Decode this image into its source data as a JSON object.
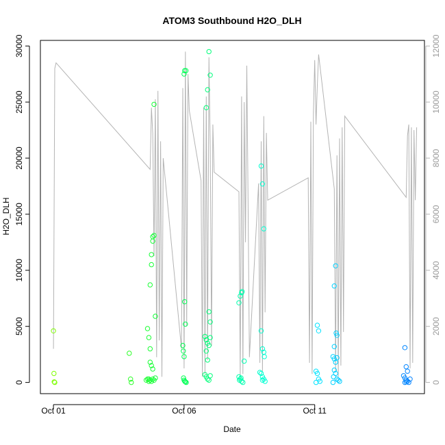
{
  "chart_data": {
    "type": "scatter",
    "title": "ATOM3 Southbound H2O_DLH",
    "xlabel": "Date",
    "ylabel": "H2O_DLH",
    "x_unit": "days since 2015-10-01",
    "x_ticks": [
      {
        "value": 0,
        "label": "Oct 01"
      },
      {
        "value": 5,
        "label": "Oct 06"
      },
      {
        "value": 10,
        "label": "Oct 11"
      }
    ],
    "xlim": [
      -0.5,
      14.2
    ],
    "ylim": [
      -1000,
      30500
    ],
    "y_ticks": [
      0,
      5000,
      10000,
      15000,
      20000,
      25000,
      30000
    ],
    "secondary_axis": {
      "side": "right",
      "color": "#b3b3b3",
      "ylim": [
        -400,
        12200
      ],
      "y_ticks": [
        0,
        2000,
        4000,
        6000,
        8000,
        10000,
        12000
      ],
      "series_line": [
        [
          0.0,
          1200
        ],
        [
          0.05,
          11200
        ],
        [
          0.1,
          11400
        ],
        [
          3.7,
          7600
        ],
        [
          3.75,
          9800
        ],
        [
          3.8,
          8900
        ],
        [
          3.85,
          4500
        ],
        [
          3.9,
          10100
        ],
        [
          3.95,
          900
        ],
        [
          4.0,
          10400
        ],
        [
          4.05,
          1500
        ],
        [
          4.1,
          8600
        ],
        [
          4.15,
          200
        ],
        [
          4.2,
          8000
        ],
        [
          4.9,
          1200
        ],
        [
          4.95,
          10500
        ],
        [
          5.0,
          500
        ],
        [
          5.05,
          11800
        ],
        [
          5.1,
          2000
        ],
        [
          5.15,
          11000
        ],
        [
          5.2,
          9700
        ],
        [
          5.65,
          7200
        ],
        [
          5.7,
          200
        ],
        [
          5.75,
          9800
        ],
        [
          5.8,
          300
        ],
        [
          5.85,
          10200
        ],
        [
          5.9,
          800
        ],
        [
          5.95,
          11600
        ],
        [
          6.0,
          8400
        ],
        [
          6.05,
          1300
        ],
        [
          6.1,
          9200
        ],
        [
          6.15,
          7500
        ],
        [
          7.1,
          6800
        ],
        [
          7.15,
          200
        ],
        [
          7.2,
          10200
        ],
        [
          7.25,
          300
        ],
        [
          7.3,
          10000
        ],
        [
          7.35,
          5000
        ],
        [
          7.4,
          11300
        ],
        [
          7.45,
          6300
        ],
        [
          7.5,
          900
        ],
        [
          7.85,
          7100
        ],
        [
          7.9,
          700
        ],
        [
          7.95,
          8600
        ],
        [
          8.0,
          400
        ],
        [
          8.05,
          9500
        ],
        [
          8.1,
          2500
        ],
        [
          8.15,
          8900
        ],
        [
          8.2,
          6500
        ],
        [
          9.75,
          7300
        ],
        [
          9.8,
          700
        ],
        [
          9.85,
          9300
        ],
        [
          9.9,
          300
        ],
        [
          9.95,
          9600
        ],
        [
          10.0,
          11500
        ],
        [
          10.05,
          9200
        ],
        [
          10.1,
          10600
        ],
        [
          10.15,
          11700
        ],
        [
          10.75,
          6900
        ],
        [
          10.8,
          400
        ],
        [
          10.85,
          8100
        ],
        [
          10.9,
          200
        ],
        [
          10.95,
          8700
        ],
        [
          11.0,
          600
        ],
        [
          11.05,
          9100
        ],
        [
          11.1,
          1800
        ],
        [
          11.15,
          9500
        ],
        [
          13.5,
          6600
        ],
        [
          13.55,
          8800
        ],
        [
          13.6,
          9200
        ],
        [
          13.65,
          500
        ],
        [
          13.7,
          9100
        ],
        [
          13.75,
          700
        ],
        [
          13.8,
          9000
        ],
        [
          13.85,
          6500
        ],
        [
          13.9,
          9100
        ]
      ]
    },
    "series": [
      {
        "color_scale": [
          "#7fff00",
          "#00ff40",
          "#00ffff",
          "#0080ff"
        ],
        "points": [
          [
            0.0,
            4600
          ],
          [
            0.02,
            800
          ],
          [
            0.03,
            50
          ],
          [
            0.05,
            0
          ],
          [
            2.9,
            2600
          ],
          [
            2.95,
            300
          ],
          [
            2.98,
            0
          ],
          [
            3.6,
            4800
          ],
          [
            3.65,
            4000
          ],
          [
            3.7,
            3000
          ],
          [
            3.7,
            8700
          ],
          [
            3.75,
            10500
          ],
          [
            3.75,
            11400
          ],
          [
            3.8,
            12600
          ],
          [
            3.8,
            13000
          ],
          [
            3.85,
            13100
          ],
          [
            3.85,
            24800
          ],
          [
            3.9,
            5900
          ],
          [
            3.7,
            1800
          ],
          [
            3.75,
            1500
          ],
          [
            3.8,
            1200
          ],
          [
            3.65,
            300
          ],
          [
            3.7,
            200
          ],
          [
            3.75,
            100
          ],
          [
            3.8,
            300
          ],
          [
            3.85,
            200
          ],
          [
            3.9,
            400
          ],
          [
            3.6,
            300
          ],
          [
            3.65,
            100
          ],
          [
            3.55,
            200
          ],
          [
            4.95,
            3300
          ],
          [
            4.97,
            2800
          ],
          [
            5.0,
            2300
          ],
          [
            5.02,
            7200
          ],
          [
            5.05,
            5200
          ],
          [
            5.0,
            27500
          ],
          [
            5.02,
            27800
          ],
          [
            5.07,
            27800
          ],
          [
            4.98,
            400
          ],
          [
            5.0,
            200
          ],
          [
            5.03,
            100
          ],
          [
            5.05,
            50
          ],
          [
            5.08,
            0
          ],
          [
            5.8,
            4100
          ],
          [
            5.85,
            3800
          ],
          [
            5.9,
            3500
          ],
          [
            5.95,
            3300
          ],
          [
            6.0,
            4000
          ],
          [
            5.85,
            2800
          ],
          [
            5.9,
            2000
          ],
          [
            5.95,
            6300
          ],
          [
            6.0,
            5400
          ],
          [
            5.85,
            24500
          ],
          [
            5.9,
            26100
          ],
          [
            5.95,
            29500
          ],
          [
            6.0,
            27400
          ],
          [
            5.8,
            700
          ],
          [
            5.85,
            500
          ],
          [
            5.9,
            300
          ],
          [
            5.95,
            200
          ],
          [
            6.0,
            600
          ],
          [
            7.1,
            7100
          ],
          [
            7.15,
            7700
          ],
          [
            7.2,
            8000
          ],
          [
            7.22,
            8100
          ],
          [
            7.1,
            500
          ],
          [
            7.15,
            300
          ],
          [
            7.2,
            100
          ],
          [
            7.25,
            0
          ],
          [
            7.3,
            1900
          ],
          [
            7.12,
            200
          ],
          [
            7.18,
            400
          ],
          [
            7.95,
            19300
          ],
          [
            8.0,
            17700
          ],
          [
            8.05,
            13700
          ],
          [
            7.95,
            4600
          ],
          [
            8.0,
            3000
          ],
          [
            8.05,
            2700
          ],
          [
            8.07,
            2300
          ],
          [
            7.9,
            900
          ],
          [
            7.95,
            800
          ],
          [
            8.0,
            500
          ],
          [
            8.05,
            300
          ],
          [
            8.1,
            100
          ],
          [
            8.0,
            200
          ],
          [
            10.1,
            5100
          ],
          [
            10.15,
            4600
          ],
          [
            10.05,
            1000
          ],
          [
            10.1,
            800
          ],
          [
            10.15,
            300
          ],
          [
            10.2,
            100
          ],
          [
            10.05,
            0
          ],
          [
            10.75,
            8600
          ],
          [
            10.8,
            10400
          ],
          [
            10.82,
            4400
          ],
          [
            10.85,
            4200
          ],
          [
            10.75,
            3200
          ],
          [
            10.7,
            2300
          ],
          [
            10.75,
            2100
          ],
          [
            10.8,
            1800
          ],
          [
            10.85,
            2200
          ],
          [
            10.75,
            1100
          ],
          [
            10.8,
            800
          ],
          [
            10.85,
            300
          ],
          [
            10.9,
            200
          ],
          [
            10.95,
            100
          ],
          [
            10.7,
            0
          ],
          [
            10.72,
            500
          ],
          [
            13.45,
            3100
          ],
          [
            13.5,
            1400
          ],
          [
            13.55,
            1000
          ],
          [
            13.4,
            600
          ],
          [
            13.45,
            400
          ],
          [
            13.5,
            200
          ],
          [
            13.55,
            100
          ],
          [
            13.6,
            0
          ],
          [
            13.65,
            300
          ],
          [
            13.5,
            50
          ],
          [
            13.45,
            0
          ]
        ]
      }
    ]
  }
}
